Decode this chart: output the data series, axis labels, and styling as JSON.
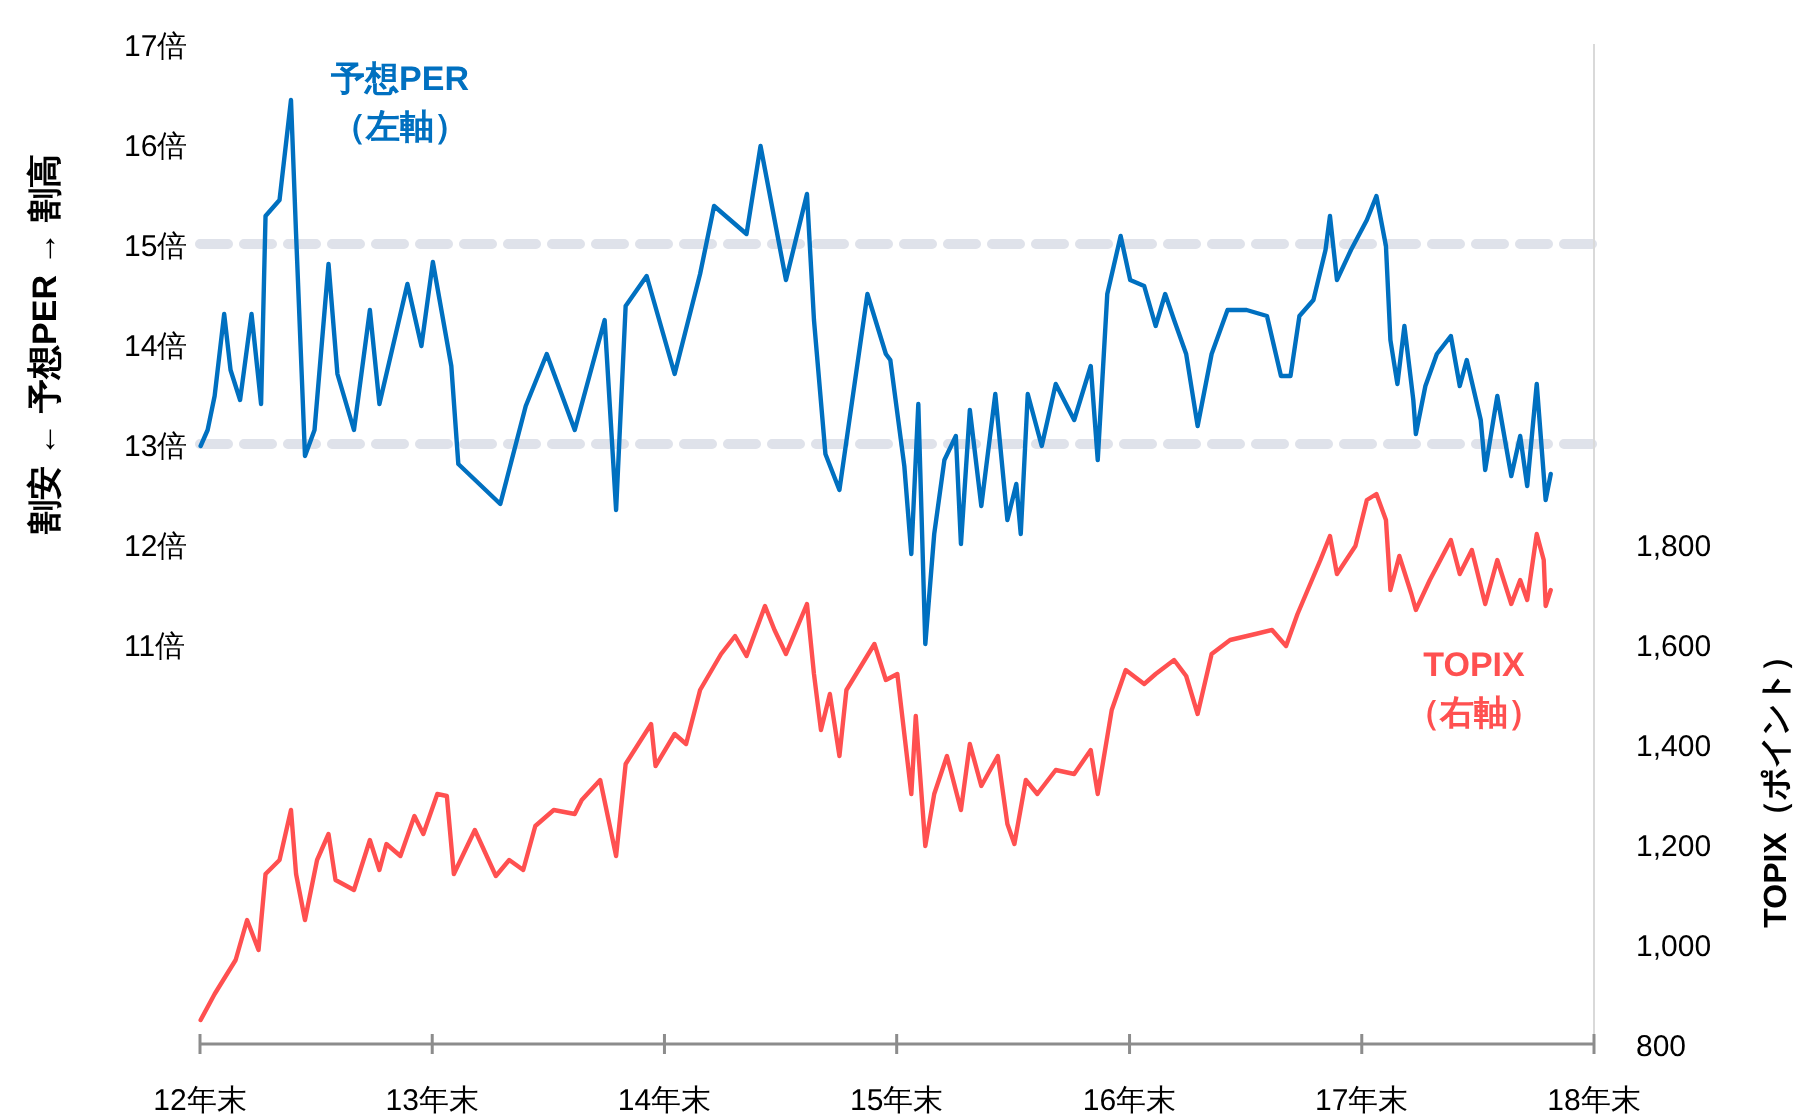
{
  "chart_data": {
    "type": "line",
    "ylabel": "割安 ← 予想PER → 割高",
    "y2label": "TOPIX（ポイント）",
    "xlim": [
      "2012-12-31",
      "2018-12-31"
    ],
    "xticks": [
      {
        "value": "2012-12-31",
        "label": "12年末"
      },
      {
        "value": "2013-12-31",
        "label": "13年末"
      },
      {
        "value": "2014-12-31",
        "label": "14年末"
      },
      {
        "value": "2015-12-31",
        "label": "15年末"
      },
      {
        "value": "2016-12-31",
        "label": "16年末"
      },
      {
        "value": "2017-12-31",
        "label": "17年末"
      },
      {
        "value": "2018-12-31",
        "label": "18年末"
      }
    ],
    "ylim": [
      7,
      17
    ],
    "yticks": [
      {
        "value": 11,
        "label": "11倍"
      },
      {
        "value": 12,
        "label": "12倍"
      },
      {
        "value": 13,
        "label": "13倍"
      },
      {
        "value": 14,
        "label": "14倍"
      },
      {
        "value": 15,
        "label": "15倍"
      },
      {
        "value": 16,
        "label": "16倍"
      },
      {
        "value": 17,
        "label": "17倍"
      }
    ],
    "y2lim": [
      800,
      2800
    ],
    "y2ticks": [
      800,
      {
        "value": 1000,
        "label": "1,000"
      },
      {
        "value": 1200,
        "label": "1,200"
      },
      {
        "value": 1400,
        "label": "1,400"
      },
      {
        "value": 1600,
        "label": "1,600"
      },
      {
        "value": 1800,
        "label": "1,800"
      }
    ],
    "grid": false,
    "marker": "none",
    "line_style": "solid",
    "ref_lines": [
      {
        "axis": "y",
        "value": 13,
        "color": "#dfe2ea",
        "line_style": "dashed"
      },
      {
        "axis": "y",
        "value": 15,
        "color": "#dfe2ea",
        "line_style": "dashed"
      }
    ],
    "series": [
      {
        "name": "予想PER\n（左軸）",
        "color": "#0070c0",
        "axis": "y",
        "x": [
          "2013-01-01",
          "2013-01-12",
          "2013-01-23",
          "2013-02-07",
          "2013-02-17",
          "2013-03-04",
          "2013-03-22",
          "2013-04-06",
          "2013-04-13",
          "2013-05-05",
          "2013-05-23",
          "2013-05-31",
          "2013-06-14",
          "2013-06-29",
          "2013-07-21",
          "2013-08-04",
          "2013-08-30",
          "2013-09-24",
          "2013-10-09",
          "2013-11-22",
          "2013-12-14",
          "2014-01-01",
          "2014-01-30",
          "2014-02-10",
          "2014-04-17",
          "2014-05-27",
          "2014-06-29",
          "2014-08-12",
          "2014-09-28",
          "2014-10-16",
          "2014-10-31",
          "2014-12-03",
          "2015-01-16",
          "2015-02-25",
          "2015-03-19",
          "2015-05-09",
          "2015-05-31",
          "2015-07-10",
          "2015-08-12",
          "2015-08-23",
          "2015-09-10",
          "2015-10-02",
          "2015-11-15",
          "2015-12-14",
          "2015-12-21",
          "2016-01-12",
          "2016-01-23",
          "2016-02-03",
          "2016-02-14",
          "2016-02-28",
          "2016-03-15",
          "2016-04-02",
          "2016-04-10",
          "2016-04-24",
          "2016-05-12",
          "2016-06-03",
          "2016-06-22",
          "2016-07-06",
          "2016-07-13",
          "2016-07-24",
          "2016-08-15",
          "2016-09-06",
          "2016-10-05",
          "2016-10-31",
          "2016-11-11",
          "2016-11-26",
          "2016-12-17",
          "2017-01-01",
          "2017-01-23",
          "2017-02-10",
          "2017-02-25",
          "2017-03-11",
          "2017-03-30",
          "2017-04-17",
          "2017-05-09",
          "2017-06-03",
          "2017-07-03",
          "2017-08-04",
          "2017-08-26",
          "2017-09-10",
          "2017-09-24",
          "2017-10-16",
          "2017-11-04",
          "2017-11-11",
          "2017-11-22",
          "2017-12-14",
          "2018-01-08",
          "2018-01-23",
          "2018-02-07",
          "2018-02-14",
          "2018-02-25",
          "2018-03-08",
          "2018-03-22",
          "2018-03-26",
          "2018-04-10",
          "2018-04-28",
          "2018-05-20",
          "2018-06-03",
          "2018-06-14",
          "2018-07-06",
          "2018-07-13",
          "2018-08-01",
          "2018-08-23",
          "2018-09-06",
          "2018-09-17",
          "2018-10-02",
          "2018-10-16",
          "2018-10-24"
        ],
        "values": [
          12.98,
          13.14,
          13.48,
          14.3,
          13.74,
          13.44,
          14.3,
          13.4,
          15.28,
          15.44,
          16.44,
          15.1,
          12.88,
          13.14,
          14.8,
          13.7,
          13.14,
          14.34,
          13.4,
          14.6,
          13.98,
          14.82,
          13.78,
          12.8,
          12.4,
          13.38,
          13.9,
          13.14,
          14.24,
          12.34,
          14.38,
          14.68,
          13.7,
          14.7,
          15.38,
          15.1,
          15.98,
          14.64,
          15.5,
          14.24,
          12.9,
          12.54,
          14.5,
          13.9,
          13.84,
          12.78,
          11.9,
          13.4,
          11.0,
          12.1,
          12.84,
          13.08,
          12.0,
          13.34,
          12.38,
          13.5,
          12.24,
          12.6,
          12.1,
          13.5,
          12.98,
          13.6,
          13.24,
          13.78,
          12.84,
          14.5,
          15.08,
          14.64,
          14.58,
          14.18,
          14.5,
          14.24,
          13.9,
          13.18,
          13.9,
          14.34,
          14.34,
          14.28,
          13.68,
          13.68,
          14.28,
          14.44,
          14.94,
          15.28,
          14.64,
          14.94,
          15.24,
          15.48,
          14.98,
          14.04,
          13.6,
          14.18,
          13.44,
          13.1,
          13.58,
          13.9,
          14.08,
          13.58,
          13.84,
          13.24,
          12.74,
          13.48,
          12.68,
          13.08,
          12.58,
          13.6,
          12.44,
          12.7
        ]
      },
      {
        "name": "TOPIX\n（右軸）",
        "color": "#ff5050",
        "axis": "y2",
        "x": [
          "2013-01-01",
          "2013-01-23",
          "2013-02-25",
          "2013-03-15",
          "2013-04-02",
          "2013-04-13",
          "2013-05-05",
          "2013-05-23",
          "2013-05-31",
          "2013-06-14",
          "2013-07-03",
          "2013-07-21",
          "2013-08-01",
          "2013-08-30",
          "2013-09-24",
          "2013-10-09",
          "2013-10-20",
          "2013-11-11",
          "2013-12-03",
          "2013-12-17",
          "2014-01-08",
          "2014-01-23",
          "2014-02-03",
          "2014-03-08",
          "2014-04-10",
          "2014-05-01",
          "2014-05-23",
          "2014-06-11",
          "2014-07-10",
          "2014-08-12",
          "2014-08-23",
          "2014-09-21",
          "2014-10-16",
          "2014-10-31",
          "2014-12-10",
          "2014-12-17",
          "2015-01-16",
          "2015-02-03",
          "2015-02-25",
          "2015-03-30",
          "2015-04-21",
          "2015-05-09",
          "2015-06-07",
          "2015-06-22",
          "2015-07-10",
          "2015-08-12",
          "2015-08-23",
          "2015-09-03",
          "2015-09-17",
          "2015-10-02",
          "2015-10-13",
          "2015-11-26",
          "2015-12-14",
          "2016-01-01",
          "2016-01-23",
          "2016-01-30",
          "2016-02-14",
          "2016-02-28",
          "2016-03-19",
          "2016-04-10",
          "2016-04-24",
          "2016-05-12",
          "2016-06-07",
          "2016-06-22",
          "2016-07-03",
          "2016-07-21",
          "2016-08-08",
          "2016-09-06",
          "2016-10-05",
          "2016-10-31",
          "2016-11-11",
          "2016-12-03",
          "2016-12-25",
          "2017-01-23",
          "2017-02-10",
          "2017-03-11",
          "2017-03-30",
          "2017-04-17",
          "2017-05-09",
          "2017-06-07",
          "2017-07-17",
          "2017-08-12",
          "2017-09-03",
          "2017-09-21",
          "2017-10-27",
          "2017-11-11",
          "2017-11-22",
          "2017-12-21",
          "2018-01-08",
          "2018-01-23",
          "2018-02-07",
          "2018-02-14",
          "2018-02-28",
          "2018-03-19",
          "2018-03-26",
          "2018-04-17",
          "2018-05-20",
          "2018-06-03",
          "2018-06-22",
          "2018-07-13",
          "2018-08-01",
          "2018-08-23",
          "2018-09-06",
          "2018-09-17",
          "2018-10-02",
          "2018-10-13",
          "2018-10-16",
          "2018-10-24"
        ],
        "values": [
          848,
          900,
          968,
          1048,
          988,
          1140,
          1168,
          1268,
          1140,
          1048,
          1168,
          1220,
          1128,
          1108,
          1208,
          1148,
          1200,
          1176,
          1256,
          1220,
          1300,
          1296,
          1140,
          1228,
          1136,
          1168,
          1148,
          1236,
          1268,
          1260,
          1288,
          1328,
          1176,
          1360,
          1440,
          1356,
          1420,
          1400,
          1508,
          1580,
          1616,
          1576,
          1676,
          1628,
          1580,
          1680,
          1540,
          1428,
          1500,
          1376,
          1508,
          1600,
          1528,
          1540,
          1300,
          1456,
          1196,
          1300,
          1376,
          1268,
          1400,
          1316,
          1376,
          1240,
          1200,
          1328,
          1300,
          1348,
          1340,
          1388,
          1300,
          1468,
          1548,
          1520,
          1540,
          1568,
          1536,
          1460,
          1580,
          1608,
          1620,
          1628,
          1596,
          1660,
          1768,
          1816,
          1740,
          1796,
          1888,
          1900,
          1848,
          1708,
          1776,
          1700,
          1668,
          1728,
          1808,
          1740,
          1788,
          1680,
          1768,
          1680,
          1728,
          1688,
          1820,
          1768,
          1676,
          1708
        ]
      }
    ]
  }
}
